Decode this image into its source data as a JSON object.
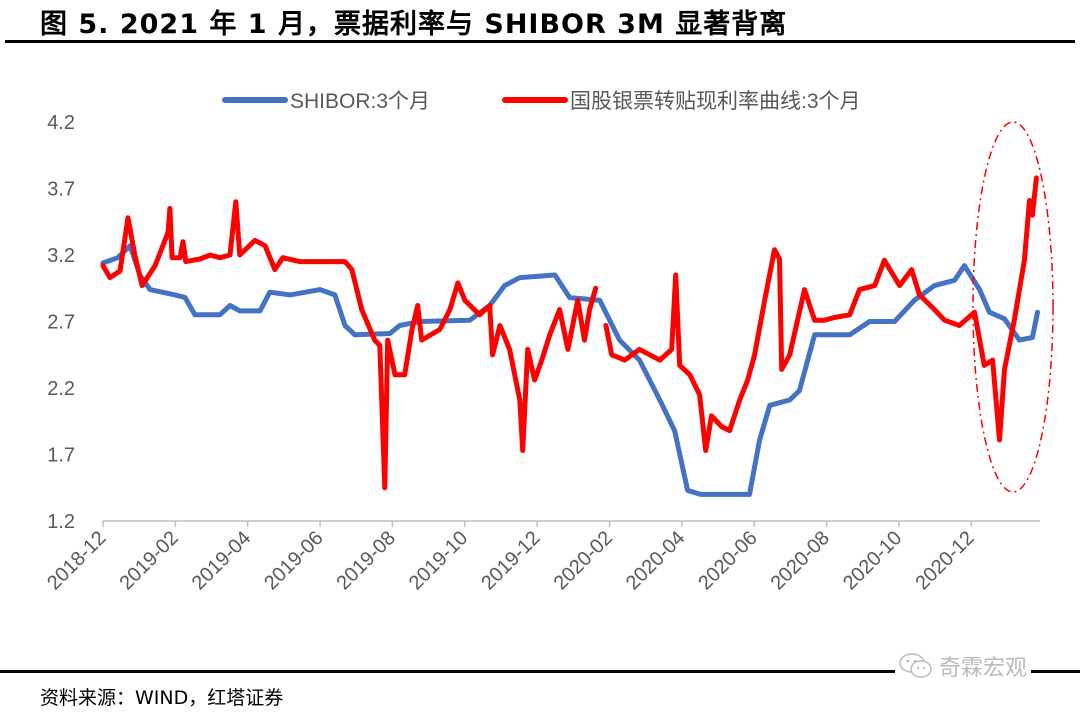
{
  "title": "图 5. 2021 年 1 月，票据利率与 SHIBOR 3M 显著背离",
  "source": "资料来源：WIND，红塔证券",
  "watermark": "奇霖宏观",
  "colors": {
    "shibor": "#4472C4",
    "bill": "#FF0000",
    "axis": "#BFBFBF"
  },
  "chart_data": {
    "type": "line",
    "title": "图 5. 2021 年 1 月，票据利率与 SHIBOR 3M 显著背离",
    "xlabel": "",
    "ylabel": "",
    "x_unit": "months since 2018-12",
    "ylim": [
      1.2,
      4.2
    ],
    "xlim": [
      0,
      25.9
    ],
    "yticks": [
      "1.2",
      "1.7",
      "2.2",
      "2.7",
      "3.2",
      "3.7",
      "4.2"
    ],
    "xtick_labels": [
      "2018-12",
      "2019-02",
      "2019-04",
      "2019-06",
      "2019-08",
      "2019-10",
      "2019-12",
      "2020-02",
      "2020-04",
      "2020-06",
      "2020-08",
      "2020-10",
      "2020-12"
    ],
    "legend_position": "top",
    "grid": false,
    "annotation": "dash-dot red ellipse highlighting Jan 2021 divergence",
    "series": [
      {
        "name": "SHIBOR:3个月",
        "points": [
          [
            0,
            3.14
          ],
          [
            0.41,
            3.18
          ],
          [
            0.75,
            3.27
          ],
          [
            1.02,
            3.05
          ],
          [
            1.3,
            2.94
          ],
          [
            1.99,
            2.9
          ],
          [
            2.27,
            2.88
          ],
          [
            2.54,
            2.75
          ],
          [
            3.23,
            2.75
          ],
          [
            3.51,
            2.82
          ],
          [
            3.78,
            2.78
          ],
          [
            4.34,
            2.78
          ],
          [
            4.61,
            2.92
          ],
          [
            5.17,
            2.9
          ],
          [
            6.0,
            2.94
          ],
          [
            6.41,
            2.9
          ],
          [
            6.69,
            2.67
          ],
          [
            6.96,
            2.6
          ],
          [
            7.93,
            2.61
          ],
          [
            8.2,
            2.67
          ],
          [
            8.76,
            2.7
          ],
          [
            10.14,
            2.71
          ],
          [
            10.69,
            2.82
          ],
          [
            11.1,
            2.97
          ],
          [
            11.52,
            3.03
          ],
          [
            12.49,
            3.05
          ],
          [
            12.9,
            2.88
          ],
          [
            13.73,
            2.86
          ],
          [
            14.28,
            2.56
          ],
          [
            14.83,
            2.41
          ],
          [
            15.39,
            2.11
          ],
          [
            15.8,
            1.88
          ],
          [
            16.16,
            1.43
          ],
          [
            16.52,
            1.4
          ],
          [
            17.87,
            1.4
          ],
          [
            18.15,
            1.81
          ],
          [
            18.43,
            2.07
          ],
          [
            18.98,
            2.11
          ],
          [
            19.25,
            2.18
          ],
          [
            19.67,
            2.6
          ],
          [
            20.64,
            2.6
          ],
          [
            21.19,
            2.7
          ],
          [
            21.88,
            2.7
          ],
          [
            22.43,
            2.86
          ],
          [
            22.98,
            2.97
          ],
          [
            23.54,
            3.01
          ],
          [
            23.81,
            3.12
          ],
          [
            24.23,
            2.94
          ],
          [
            24.5,
            2.77
          ],
          [
            24.92,
            2.72
          ],
          [
            25.33,
            2.56
          ],
          [
            25.69,
            2.58
          ],
          [
            25.83,
            2.77
          ]
        ]
      },
      {
        "name": "国股银票转贴现利率曲线:3个月",
        "points": [
          [
            0,
            3.12
          ],
          [
            0.19,
            3.03
          ],
          [
            0.47,
            3.08
          ],
          [
            0.69,
            3.48
          ],
          [
            0.88,
            3.2
          ],
          [
            1.08,
            2.97
          ],
          [
            1.44,
            3.12
          ],
          [
            1.8,
            3.37
          ],
          [
            1.85,
            3.55
          ],
          [
            1.91,
            3.18
          ],
          [
            2.13,
            3.18
          ],
          [
            2.21,
            3.3
          ],
          [
            2.29,
            3.15
          ],
          [
            2.68,
            3.17
          ],
          [
            2.96,
            3.2
          ],
          [
            3.23,
            3.18
          ],
          [
            3.51,
            3.2
          ],
          [
            3.67,
            3.6
          ],
          [
            3.78,
            3.2
          ],
          [
            4.2,
            3.31
          ],
          [
            4.48,
            3.27
          ],
          [
            4.75,
            3.09
          ],
          [
            4.97,
            3.18
          ],
          [
            5.44,
            3.15
          ],
          [
            5.99,
            3.15
          ],
          [
            6.69,
            3.15
          ],
          [
            6.88,
            3.09
          ],
          [
            7.15,
            2.79
          ],
          [
            7.51,
            2.56
          ],
          [
            7.65,
            2.52
          ],
          [
            7.79,
            1.45
          ],
          [
            7.87,
            2.56
          ],
          [
            8.07,
            2.3
          ],
          [
            8.34,
            2.3
          ],
          [
            8.54,
            2.64
          ],
          [
            8.7,
            2.82
          ],
          [
            8.81,
            2.56
          ],
          [
            9.31,
            2.64
          ],
          [
            9.59,
            2.79
          ],
          [
            9.81,
            2.99
          ],
          [
            10.0,
            2.86
          ],
          [
            10.41,
            2.75
          ],
          [
            10.69,
            2.82
          ],
          [
            10.77,
            2.45
          ],
          [
            10.97,
            2.67
          ],
          [
            11.24,
            2.49
          ],
          [
            11.52,
            2.11
          ],
          [
            11.6,
            1.73
          ],
          [
            11.74,
            2.49
          ],
          [
            11.93,
            2.26
          ],
          [
            12.13,
            2.41
          ],
          [
            12.35,
            2.6
          ],
          [
            12.62,
            2.79
          ],
          [
            12.85,
            2.49
          ],
          [
            13.12,
            2.86
          ],
          [
            13.31,
            2.56
          ],
          [
            13.45,
            2.79
          ],
          [
            13.62,
            2.95
          ],
          null,
          [
            13.9,
            2.67
          ],
          [
            14.06,
            2.45
          ],
          [
            14.42,
            2.41
          ],
          [
            14.83,
            2.49
          ],
          [
            15.39,
            2.41
          ],
          [
            15.72,
            2.49
          ],
          [
            15.83,
            3.05
          ],
          [
            15.94,
            2.37
          ],
          [
            16.22,
            2.3
          ],
          [
            16.49,
            2.15
          ],
          [
            16.66,
            1.73
          ],
          [
            16.82,
            1.99
          ],
          [
            17.1,
            1.91
          ],
          [
            17.32,
            1.88
          ],
          [
            17.6,
            2.11
          ],
          [
            17.82,
            2.26
          ],
          [
            18.01,
            2.45
          ],
          [
            18.29,
            2.86
          ],
          [
            18.56,
            3.24
          ],
          [
            18.7,
            3.17
          ],
          [
            18.76,
            2.34
          ],
          [
            18.98,
            2.45
          ],
          [
            19.39,
            2.94
          ],
          [
            19.67,
            2.71
          ],
          [
            19.94,
            2.71
          ],
          [
            20.22,
            2.73
          ],
          [
            20.64,
            2.75
          ],
          [
            20.91,
            2.94
          ],
          [
            21.33,
            2.97
          ],
          [
            21.6,
            3.16
          ],
          [
            22.02,
            2.97
          ],
          [
            22.35,
            3.09
          ],
          [
            22.57,
            2.9
          ],
          [
            22.98,
            2.79
          ],
          [
            23.26,
            2.71
          ],
          [
            23.67,
            2.67
          ],
          [
            24.09,
            2.77
          ],
          [
            24.36,
            2.37
          ],
          [
            24.59,
            2.41
          ],
          [
            24.78,
            1.81
          ],
          [
            24.92,
            2.34
          ],
          [
            25.19,
            2.71
          ],
          [
            25.47,
            3.16
          ],
          [
            25.61,
            3.61
          ],
          [
            25.69,
            3.5
          ],
          [
            25.8,
            3.78
          ]
        ]
      }
    ]
  }
}
